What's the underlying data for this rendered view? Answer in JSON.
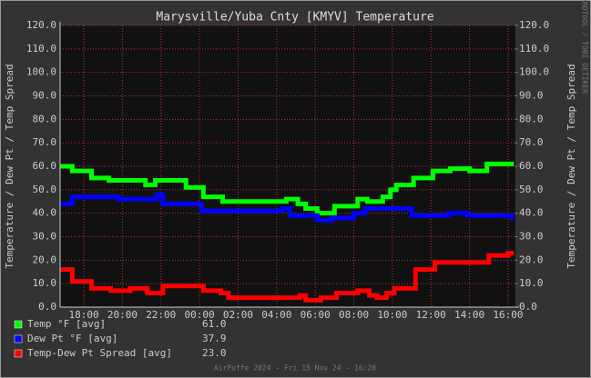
{
  "chart_data": {
    "type": "line",
    "title": "Marysville/Yuba Cnty [KMYV] Temperature",
    "ylabel": "Temperature / Dew Pt / Temp Spread",
    "y2label": "Temperature / Dew Pt / Temp Spread",
    "side_text": "RRDTOOL / TOBI OETIKER",
    "footer": "AirPuffe 2024 - Fri 15 Nov 24 - 16:20",
    "step": true,
    "grid": true,
    "grid_color": "#b33",
    "plot_background": "#111",
    "xlim": [
      -7.23,
      16.38
    ],
    "xticks": [
      {
        "value": -6,
        "label": "18:00"
      },
      {
        "value": -4,
        "label": "20:00"
      },
      {
        "value": -2,
        "label": "22:00"
      },
      {
        "value": 0,
        "label": "00:00"
      },
      {
        "value": 2,
        "label": "02:00"
      },
      {
        "value": 4,
        "label": "04:00"
      },
      {
        "value": 6,
        "label": "06:00"
      },
      {
        "value": 8,
        "label": "08:00"
      },
      {
        "value": 10,
        "label": "10:00"
      },
      {
        "value": 12,
        "label": "12:00"
      },
      {
        "value": 14,
        "label": "14:00"
      },
      {
        "value": 16,
        "label": "16:00"
      }
    ],
    "ylim": [
      0,
      120
    ],
    "yticks": [
      {
        "value": 0,
        "label": "0.0"
      },
      {
        "value": 10,
        "label": "10.0"
      },
      {
        "value": 20,
        "label": "20.0"
      },
      {
        "value": 30,
        "label": "30.0"
      },
      {
        "value": 40,
        "label": "40.0"
      },
      {
        "value": 50,
        "label": "50.0"
      },
      {
        "value": 60,
        "label": "60.0"
      },
      {
        "value": 70,
        "label": "70.0"
      },
      {
        "value": 80,
        "label": "80.0"
      },
      {
        "value": 90,
        "label": "90.0"
      },
      {
        "value": 100,
        "label": "100.0"
      },
      {
        "value": 110,
        "label": "110.0"
      },
      {
        "value": 120,
        "label": "120.0"
      }
    ],
    "y2lim": [
      0,
      120
    ],
    "y2ticks": [
      {
        "value": 0,
        "label": "0.0"
      },
      {
        "value": 10,
        "label": "10.0"
      },
      {
        "value": 20,
        "label": "20.0"
      },
      {
        "value": 30,
        "label": "30.0"
      },
      {
        "value": 40,
        "label": "40.0"
      },
      {
        "value": 50,
        "label": "50.0"
      },
      {
        "value": 60,
        "label": "60.0"
      },
      {
        "value": 70,
        "label": "70.0"
      },
      {
        "value": 80,
        "label": "80.0"
      },
      {
        "value": 90,
        "label": "90.0"
      },
      {
        "value": 100,
        "label": "100.0"
      },
      {
        "value": 110,
        "label": "110.0"
      },
      {
        "value": 120,
        "label": "120.0"
      }
    ],
    "series": [
      {
        "name": "Temp °F [avg]",
        "color": "#00ff00",
        "current": {
          "value": 61,
          "label": "61.0"
        },
        "x": [
          -7.2,
          -6.6,
          -5.6,
          -4.7,
          -2.8,
          -2.3,
          -0.7,
          0.2,
          1.2,
          4.5,
          5.1,
          5.5,
          6.1,
          7.0,
          8.2,
          8.7,
          9.5,
          9.9,
          10.2,
          11.1,
          12.1,
          13.0,
          14.0,
          14.9,
          16.3
        ],
        "values": [
          60,
          58,
          55,
          54,
          52,
          54,
          51,
          47,
          45,
          46,
          44,
          42,
          40,
          43,
          46,
          45,
          47,
          50,
          52,
          55,
          58,
          59,
          58,
          61,
          61
        ]
      },
      {
        "name": "Dew Pt °F [avg]",
        "color": "#0000ff",
        "current": {
          "value": 37.9,
          "label": "37.9"
        },
        "x": [
          -7.2,
          -6.6,
          -4.2,
          -2.2,
          -1.9,
          0.1,
          4.3,
          4.7,
          6.1,
          6.9,
          8.0,
          8.6,
          11.0,
          12.9,
          13.9,
          16.2,
          16.3
        ],
        "values": [
          44,
          47,
          46,
          48,
          44,
          41,
          42,
          39,
          37,
          38,
          40,
          42,
          39,
          40,
          39,
          38,
          38
        ]
      },
      {
        "name": "Temp-Dew Pt Spread [avg]",
        "color": "#ff0000",
        "current": {
          "value": 23,
          "label": "23.0"
        },
        "x": [
          -7.2,
          -6.6,
          -5.6,
          -4.6,
          -3.6,
          -2.7,
          -1.9,
          0.2,
          1.1,
          1.5,
          5.2,
          5.5,
          6.3,
          7.1,
          8.2,
          8.8,
          9.2,
          9.7,
          10.1,
          11.2,
          12.2,
          15.0,
          16.0,
          16.3
        ],
        "values": [
          16,
          11,
          8,
          7,
          8,
          6,
          9,
          7,
          6,
          4,
          5,
          3,
          4,
          6,
          7,
          5,
          4,
          6,
          8,
          16,
          19,
          22,
          23,
          23
        ]
      }
    ]
  }
}
